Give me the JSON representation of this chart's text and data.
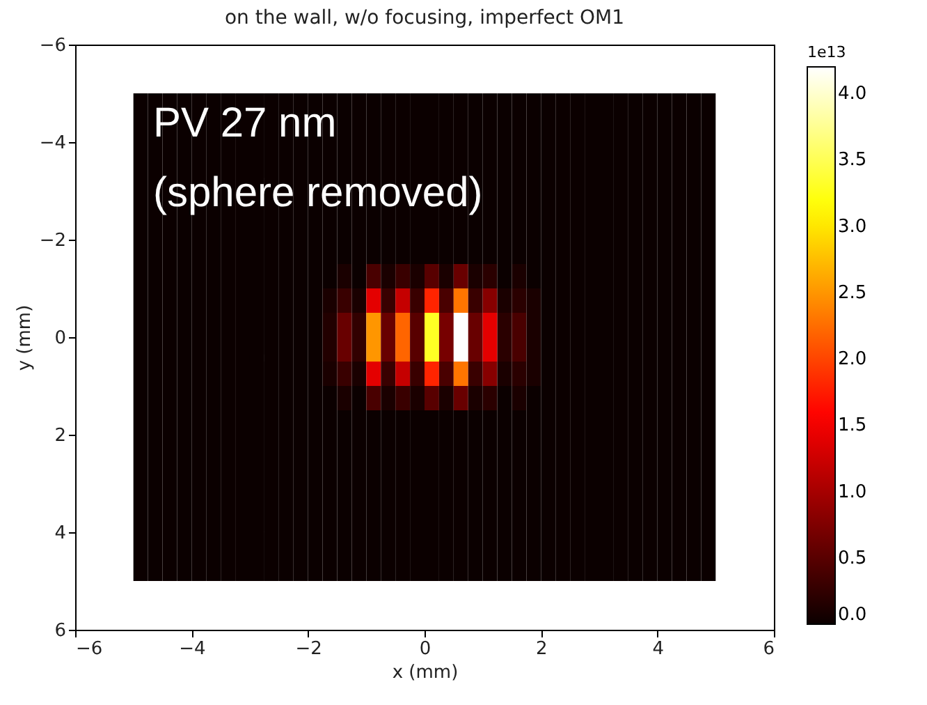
{
  "chart_data": {
    "type": "heatmap",
    "title": "on the wall, w/o focusing, imperfect OM1",
    "xlabel": "x (mm)",
    "ylabel": "y (mm)",
    "clabel": "1e13",
    "annotations": [
      "PV 27 nm",
      "(sphere removed)"
    ],
    "x": [
      -4.875,
      -4.625,
      -4.375,
      -4.125,
      -3.875,
      -3.625,
      -3.375,
      -3.125,
      -2.875,
      -2.625,
      -2.375,
      -2.125,
      -1.875,
      -1.625,
      -1.375,
      -1.125,
      -0.875,
      -0.625,
      -0.375,
      -0.125,
      0.125,
      0.375,
      0.625,
      0.875,
      1.125,
      1.375,
      1.625,
      1.875,
      2.125,
      2.375,
      2.625,
      2.875,
      3.125,
      3.375,
      3.625,
      3.875,
      4.125,
      4.375,
      4.625,
      4.875
    ],
    "y": [
      -4.75,
      -4.25,
      -3.75,
      -3.25,
      -2.75,
      -2.25,
      -1.75,
      -1.25,
      -0.75,
      -0.25,
      0.25,
      0.75,
      1.25,
      1.75,
      2.25,
      2.75,
      3.25,
      3.75,
      4.25,
      4.75
    ],
    "cells": [
      [
        0,
        0,
        0,
        0,
        0,
        0,
        0,
        0,
        0,
        0,
        0,
        0,
        0,
        0,
        0,
        0,
        0,
        0,
        0,
        0,
        0,
        0,
        0,
        0,
        0,
        0,
        0,
        0,
        0,
        0,
        0,
        0,
        0,
        0,
        0,
        0,
        0,
        0,
        0,
        0
      ],
      [
        0,
        0,
        0,
        0,
        0,
        0,
        0,
        0,
        0,
        0,
        0,
        0,
        0,
        0,
        0,
        0,
        0,
        0,
        0,
        0,
        0,
        0,
        0,
        0,
        0,
        0,
        0,
        0,
        0,
        0,
        0,
        0,
        0,
        0,
        0,
        0,
        0,
        0,
        0,
        0
      ],
      [
        0,
        0,
        0,
        0,
        0,
        0,
        0,
        0,
        0,
        0,
        0,
        0,
        0,
        0,
        0,
        0,
        0,
        0,
        0,
        0,
        0,
        0,
        0,
        0,
        0,
        0,
        0,
        0,
        0,
        0,
        0,
        0,
        0,
        0,
        0,
        0,
        0,
        0,
        0,
        0
      ],
      [
        0,
        0,
        0,
        0,
        0,
        0,
        0,
        0,
        0,
        0,
        0,
        0,
        0,
        0,
        0,
        0,
        0,
        0,
        0,
        0,
        0,
        0,
        0,
        0,
        0,
        0,
        0,
        0,
        0,
        0,
        0,
        0,
        0,
        0,
        0,
        0,
        0,
        0,
        0,
        0
      ],
      [
        0,
        0,
        0,
        0,
        0,
        0,
        0,
        0,
        0,
        0,
        0,
        0,
        0,
        0,
        0,
        0,
        0,
        0,
        0,
        0,
        0,
        0,
        0,
        0,
        0,
        0,
        0,
        0,
        0,
        0,
        0,
        0,
        0,
        0,
        0,
        0,
        0,
        0,
        0,
        0
      ],
      [
        0,
        0,
        0,
        0,
        0,
        0,
        0,
        0,
        0,
        0,
        0,
        0,
        0,
        0,
        0,
        0,
        0,
        0,
        0,
        0,
        0,
        0,
        0,
        0,
        0,
        0,
        0,
        0,
        0,
        0,
        0,
        0,
        0,
        0,
        0,
        0,
        0,
        0,
        0,
        0
      ],
      [
        0,
        0,
        0,
        0,
        0,
        0,
        0,
        0,
        0,
        0,
        0,
        0,
        0,
        0,
        0,
        0,
        0,
        0,
        0,
        0,
        0,
        0,
        0,
        0,
        0,
        0,
        0,
        0,
        0,
        0,
        0,
        0,
        0,
        0,
        0,
        0,
        0,
        0,
        0,
        0
      ],
      [
        0,
        0,
        0,
        0,
        0,
        0,
        0,
        0,
        0,
        0,
        0,
        0,
        0,
        0,
        0.1,
        0,
        0.4,
        0.1,
        0.3,
        0.1,
        0.5,
        0.1,
        0.6,
        0.1,
        0.2,
        0,
        0.1,
        0,
        0,
        0,
        0,
        0,
        0,
        0,
        0,
        0,
        0,
        0,
        0,
        0
      ],
      [
        0,
        0,
        0,
        0,
        0,
        0,
        0,
        0,
        0,
        0,
        0,
        0,
        0,
        0.1,
        0.3,
        0.1,
        1.4,
        0.3,
        1.2,
        0.3,
        1.8,
        0.4,
        2.3,
        0.3,
        0.8,
        0.1,
        0.2,
        0.1,
        0,
        0,
        0,
        0,
        0,
        0,
        0,
        0,
        0,
        0,
        0,
        0
      ],
      [
        0,
        0,
        0,
        0,
        0,
        0,
        0,
        0,
        0,
        0,
        0,
        0,
        0,
        0.15,
        0.6,
        0.25,
        2.5,
        0.6,
        2.2,
        0.5,
        3.3,
        0.7,
        4.2,
        0.6,
        1.4,
        0.2,
        0.4,
        0.1,
        0,
        0,
        0,
        0,
        0,
        0,
        0,
        0,
        0,
        0,
        0,
        0
      ],
      [
        0,
        0,
        0,
        0,
        0,
        0,
        0,
        0,
        0,
        0,
        0,
        0,
        0,
        0.15,
        0.6,
        0.25,
        2.5,
        0.6,
        2.2,
        0.5,
        3.3,
        0.7,
        4.2,
        0.6,
        1.4,
        0.2,
        0.4,
        0.1,
        0,
        0,
        0,
        0,
        0,
        0,
        0,
        0,
        0,
        0,
        0,
        0
      ],
      [
        0,
        0,
        0,
        0,
        0,
        0,
        0,
        0,
        0,
        0,
        0,
        0,
        0,
        0.1,
        0.3,
        0.1,
        1.4,
        0.3,
        1.2,
        0.3,
        1.8,
        0.4,
        2.3,
        0.3,
        0.8,
        0.1,
        0.2,
        0.1,
        0,
        0,
        0,
        0,
        0,
        0,
        0,
        0,
        0,
        0,
        0,
        0
      ],
      [
        0,
        0,
        0,
        0,
        0,
        0,
        0,
        0,
        0,
        0,
        0,
        0,
        0,
        0,
        0.1,
        0,
        0.4,
        0.1,
        0.3,
        0.1,
        0.5,
        0.1,
        0.6,
        0.1,
        0.2,
        0,
        0.1,
        0,
        0,
        0,
        0,
        0,
        0,
        0,
        0,
        0,
        0,
        0,
        0,
        0
      ],
      [
        0,
        0,
        0,
        0,
        0,
        0,
        0,
        0,
        0,
        0,
        0,
        0,
        0,
        0,
        0,
        0,
        0,
        0,
        0,
        0,
        0,
        0,
        0,
        0,
        0,
        0,
        0,
        0,
        0,
        0,
        0,
        0,
        0,
        0,
        0,
        0,
        0,
        0,
        0,
        0
      ],
      [
        0,
        0,
        0,
        0,
        0,
        0,
        0,
        0,
        0,
        0,
        0,
        0,
        0,
        0,
        0,
        0,
        0,
        0,
        0,
        0,
        0,
        0,
        0,
        0,
        0,
        0,
        0,
        0,
        0,
        0,
        0,
        0,
        0,
        0,
        0,
        0,
        0,
        0,
        0,
        0
      ],
      [
        0,
        0,
        0,
        0,
        0,
        0,
        0,
        0,
        0,
        0,
        0,
        0,
        0,
        0,
        0,
        0,
        0,
        0,
        0,
        0,
        0,
        0,
        0,
        0,
        0,
        0,
        0,
        0,
        0,
        0,
        0,
        0,
        0,
        0,
        0,
        0,
        0,
        0,
        0,
        0
      ],
      [
        0,
        0,
        0,
        0,
        0,
        0,
        0,
        0,
        0,
        0,
        0,
        0,
        0,
        0,
        0,
        0,
        0,
        0,
        0,
        0,
        0,
        0,
        0,
        0,
        0,
        0,
        0,
        0,
        0,
        0,
        0,
        0,
        0,
        0,
        0,
        0,
        0,
        0,
        0,
        0
      ],
      [
        0,
        0,
        0,
        0,
        0,
        0,
        0,
        0,
        0,
        0,
        0,
        0,
        0,
        0,
        0,
        0,
        0,
        0,
        0,
        0,
        0,
        0,
        0,
        0,
        0,
        0,
        0,
        0,
        0,
        0,
        0,
        0,
        0,
        0,
        0,
        0,
        0,
        0,
        0,
        0
      ],
      [
        0,
        0,
        0,
        0,
        0,
        0,
        0,
        0,
        0,
        0,
        0,
        0,
        0,
        0,
        0,
        0,
        0,
        0,
        0,
        0,
        0,
        0,
        0,
        0,
        0,
        0,
        0,
        0,
        0,
        0,
        0,
        0,
        0,
        0,
        0,
        0,
        0,
        0,
        0,
        0
      ],
      [
        0,
        0,
        0,
        0,
        0,
        0,
        0,
        0,
        0,
        0,
        0,
        0,
        0,
        0,
        0,
        0,
        0,
        0,
        0,
        0,
        0,
        0,
        0,
        0,
        0,
        0,
        0,
        0,
        0,
        0,
        0,
        0,
        0,
        0,
        0,
        0,
        0,
        0,
        0,
        0
      ]
    ],
    "clim": [
      0,
      4.2
    ],
    "cticks": [
      {
        "value": 0,
        "label": "0.0"
      },
      {
        "value": 0.5,
        "label": "0.5"
      },
      {
        "value": 1,
        "label": "1.0"
      },
      {
        "value": 1.5,
        "label": "1.5"
      },
      {
        "value": 2,
        "label": "2.0"
      },
      {
        "value": 2.5,
        "label": "2.5"
      },
      {
        "value": 3,
        "label": "3.0"
      },
      {
        "value": 3.5,
        "label": "3.5"
      },
      {
        "value": 4,
        "label": "4.0"
      }
    ],
    "xlim": [
      -6,
      6
    ],
    "xticks": [
      -6,
      -4,
      -2,
      0,
      2,
      4,
      6
    ],
    "ylim": [
      6,
      -6
    ],
    "yticks": [
      -6,
      -4,
      -2,
      0,
      2,
      4,
      6
    ],
    "grid": false
  }
}
